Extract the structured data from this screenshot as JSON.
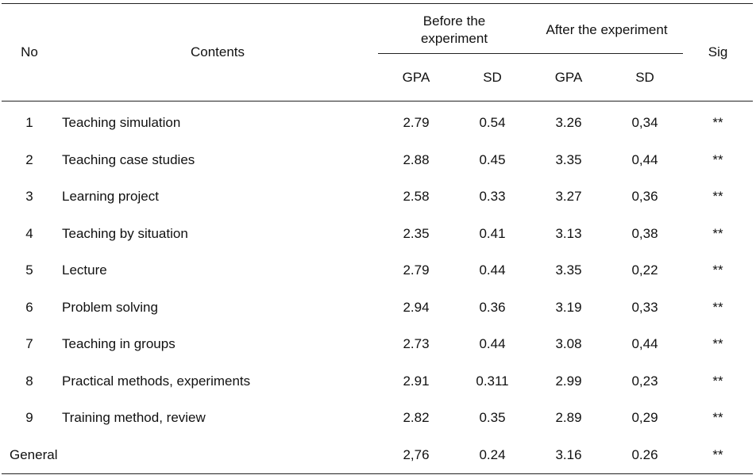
{
  "header": {
    "no": "No",
    "contents": "Contents",
    "before_line1": "Before the",
    "before_line2": "experiment",
    "after": "After the experiment",
    "sig": "Sig",
    "gpa": "GPA",
    "sd": "SD"
  },
  "rows": [
    {
      "no": "1",
      "content": "Teaching simulation",
      "gpa_before": "2.79",
      "sd_before": "0.54",
      "gpa_after": "3.26",
      "sd_after": "0,34",
      "sig": "**"
    },
    {
      "no": "2",
      "content": "Teaching case studies",
      "gpa_before": "2.88",
      "sd_before": "0.45",
      "gpa_after": "3.35",
      "sd_after": "0,44",
      "sig": "**"
    },
    {
      "no": "3",
      "content": "Learning project",
      "gpa_before": "2.58",
      "sd_before": "0.33",
      "gpa_after": "3.27",
      "sd_after": "0,36",
      "sig": "**"
    },
    {
      "no": "4",
      "content": "Teaching by situation",
      "gpa_before": "2.35",
      "sd_before": "0.41",
      "gpa_after": "3.13",
      "sd_after": "0,38",
      "sig": "**"
    },
    {
      "no": "5",
      "content": "Lecture",
      "gpa_before": "2.79",
      "sd_before": "0.44",
      "gpa_after": "3.35",
      "sd_after": "0,22",
      "sig": "**"
    },
    {
      "no": "6",
      "content": "Problem solving",
      "gpa_before": "2.94",
      "sd_before": "0.36",
      "gpa_after": "3.19",
      "sd_after": "0,33",
      "sig": "**"
    },
    {
      "no": "7",
      "content": "Teaching in groups",
      "gpa_before": "2.73",
      "sd_before": "0.44",
      "gpa_after": "3.08",
      "sd_after": "0,44",
      "sig": "**"
    },
    {
      "no": "8",
      "content": "Practical methods, experiments",
      "gpa_before": "2.91",
      "sd_before": "0.311",
      "gpa_after": "2.99",
      "sd_after": "0,23",
      "sig": "**"
    },
    {
      "no": "9",
      "content": "Training method, review",
      "gpa_before": "2.82",
      "sd_before": "0.35",
      "gpa_after": "2.89",
      "sd_after": "0,29",
      "sig": "**"
    }
  ],
  "general": {
    "label": "General",
    "gpa_before": "2,76",
    "sd_before": "0.24",
    "gpa_after": "3.16",
    "sd_after": "0.26",
    "sig": "**"
  }
}
